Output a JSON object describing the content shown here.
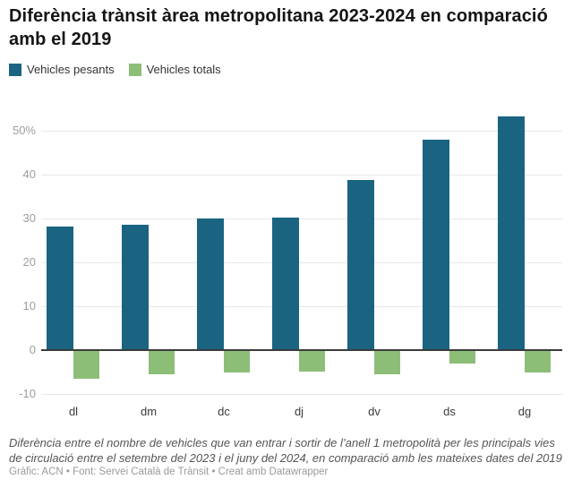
{
  "header": {
    "title": "Diferència trànsit àrea metropolitana 2023-2024 en comparació amb el 2019"
  },
  "legend": {
    "items": [
      {
        "label": "Vehicles pesants",
        "color": "#1a6482",
        "icon": "legend-swatch-square"
      },
      {
        "label": "Vehicles totals",
        "color": "#8cbe78",
        "icon": "legend-swatch-square"
      }
    ]
  },
  "chart_data": {
    "type": "bar",
    "categories": [
      "dl",
      "dm",
      "dc",
      "dj",
      "dv",
      "ds",
      "dg"
    ],
    "series": [
      {
        "name": "Vehicles pesants",
        "color": "#1a6482",
        "values": [
          28.2,
          28.5,
          30,
          30.3,
          38.7,
          48,
          53.3
        ]
      },
      {
        "name": "Vehicles totals",
        "color": "#8cbe78",
        "values": [
          -6.5,
          -5.6,
          -5.2,
          -4.8,
          -5.6,
          -3,
          -5
        ]
      }
    ],
    "title": "Diferència trànsit àrea metropolitana 2023-2024 en comparació amb el 2019",
    "xlabel": "",
    "ylabel": "",
    "yticks": [
      50,
      40,
      30,
      20,
      10,
      0,
      -10
    ],
    "ytick_labels": [
      "50%",
      "40",
      "30",
      "20",
      "10",
      "0",
      "-10"
    ],
    "ylim": [
      -10,
      56
    ],
    "grid": true,
    "zero_line": true,
    "legend_position": "top",
    "colors": {
      "grid": "#e7e7e7",
      "zero_line": "#3b3b3b",
      "ytick_text": "#9d9d9d",
      "xtick_text": "#3a3a3a"
    }
  },
  "footer": {
    "note": "Diferència entre el nombre de vehicles que van entrar i sortir de l’anell 1 metropolità per les principals vies de circulació entre el setembre del 2023 i el juny del 2024, en comparació amb les mateixes dates del 2019",
    "credits": "Gràfic: ACN • Font: Servei Català de Trànsit • Creat amb Datawrapper"
  }
}
